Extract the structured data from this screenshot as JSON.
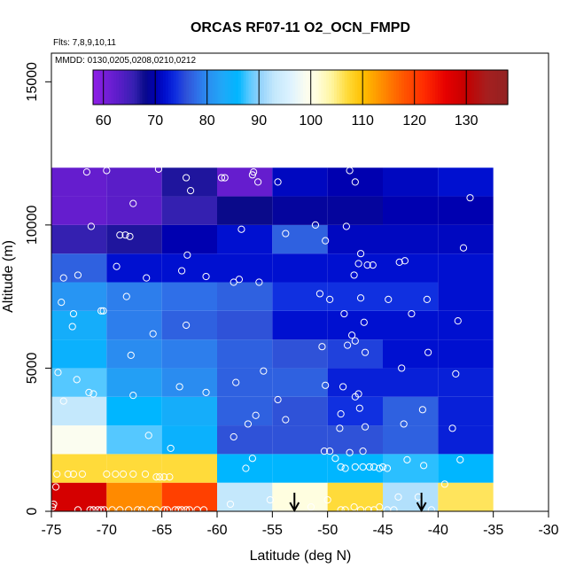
{
  "chart_data": {
    "type": "heatmap",
    "title": "ORCAS RF07-11 O2_OCN_FMPD",
    "subtitle_flights": "Flts: 7,8,9,10,11",
    "subtitle_dates": "MMDD: 0130,0205,0208,0210,0212",
    "xlabel": "Latitude (deg N)",
    "ylabel": "Altitude (m)",
    "xlim": [
      -75,
      -30
    ],
    "ylim": [
      0,
      16000
    ],
    "x_ticks": [
      -75,
      -70,
      -65,
      -60,
      -55,
      -50,
      -45,
      -40,
      -35,
      -30
    ],
    "x_tick_labels": [
      "-75",
      "-70",
      "-65",
      "-60",
      "-55",
      "-50",
      "-45",
      "-40",
      "-35",
      "-30"
    ],
    "y_ticks": [
      0,
      5000,
      10000,
      15000
    ],
    "y_tick_labels": [
      "0",
      "5000",
      "10000",
      "15000"
    ],
    "colorbar": {
      "range": [
        58,
        138
      ],
      "ticks": [
        60,
        70,
        80,
        90,
        100,
        110,
        120,
        130
      ],
      "tick_labels": [
        "60",
        "70",
        "80",
        "90",
        "100",
        "110",
        "120",
        "130"
      ]
    },
    "cell_size": {
      "dlat": 5,
      "dalt": 1000
    },
    "lat_starts": [
      -75,
      -70,
      -65,
      -60,
      -55,
      -50,
      -45,
      -40
    ],
    "alt_starts": [
      0,
      1000,
      2000,
      3000,
      4000,
      5000,
      6000,
      7000,
      8000,
      9000,
      10000,
      11000
    ],
    "cell_values": [
      [
        128,
        114,
        120,
        93,
        101,
        107,
        92,
        106
      ],
      [
        107,
        107,
        107,
        86,
        86,
        86,
        87,
        86
      ],
      [
        99,
        88,
        85,
        76,
        76,
        76,
        77,
        73
      ],
      [
        93,
        86,
        84,
        77,
        76,
        74,
        77,
        73
      ],
      [
        88,
        82,
        80,
        77,
        77,
        73,
        73,
        73
      ],
      [
        85,
        80,
        79,
        77,
        76,
        75,
        72,
        72
      ],
      [
        84,
        79,
        77,
        76,
        72,
        72,
        72,
        72
      ],
      [
        81,
        79,
        78,
        77,
        74,
        74,
        74,
        72
      ],
      [
        77,
        72,
        72,
        72,
        72,
        72,
        72,
        72
      ],
      [
        66,
        67,
        70,
        72,
        77,
        71,
        71,
        71
      ],
      [
        62,
        63,
        66,
        68,
        69,
        69,
        70,
        70
      ],
      [
        62,
        63,
        67,
        62,
        71,
        70,
        71,
        72
      ]
    ],
    "observation_points": [
      [
        -74.9,
        0.15
      ],
      [
        -74.8,
        0.25
      ],
      [
        -74.6,
        0.85
      ],
      [
        -74.5,
        1.3
      ],
      [
        -73.5,
        1.3
      ],
      [
        -73.0,
        1.3
      ],
      [
        -72.6,
        0.05
      ],
      [
        -72.2,
        1.3
      ],
      [
        -71.5,
        0.05
      ],
      [
        -71.2,
        0.05
      ],
      [
        -70.8,
        0.05
      ],
      [
        -70.5,
        0.05
      ],
      [
        -70.2,
        0.05
      ],
      [
        -70.0,
        1.3
      ],
      [
        -69.5,
        0.05
      ],
      [
        -69.2,
        1.3
      ],
      [
        -68.8,
        0.05
      ],
      [
        -68.5,
        1.3
      ],
      [
        -68.0,
        0.05
      ],
      [
        -67.6,
        1.3
      ],
      [
        -67.2,
        0.05
      ],
      [
        -66.8,
        0.05
      ],
      [
        -66.5,
        1.3
      ],
      [
        -66.0,
        0.05
      ],
      [
        -65.5,
        0.05
      ],
      [
        -64.8,
        0.05
      ],
      [
        -64.5,
        0.05
      ],
      [
        -63.8,
        0.05
      ],
      [
        -63.5,
        0.05
      ],
      [
        -63.2,
        0.05
      ],
      [
        -62.8,
        0.05
      ],
      [
        -62.5,
        0.05
      ],
      [
        -61.8,
        0.05
      ],
      [
        -61.2,
        0.05
      ],
      [
        -65.5,
        1.2
      ],
      [
        -65.2,
        1.2
      ],
      [
        -64.8,
        1.2
      ],
      [
        -64.3,
        1.2
      ],
      [
        -74.4,
        4.85
      ],
      [
        -73.9,
        3.85
      ],
      [
        -72.7,
        4.6
      ],
      [
        -71.6,
        4.15
      ],
      [
        -71.2,
        4.1
      ],
      [
        -67.6,
        4.05
      ],
      [
        -66.2,
        2.65
      ],
      [
        -64.2,
        2.2
      ],
      [
        -63.4,
        4.35
      ],
      [
        -61.0,
        4.15
      ],
      [
        -74.1,
        7.3
      ],
      [
        -73.0,
        6.9
      ],
      [
        -73.1,
        6.45
      ],
      [
        -70.5,
        7.0
      ],
      [
        -70.3,
        7.0
      ],
      [
        -68.2,
        7.5
      ],
      [
        -67.8,
        5.45
      ],
      [
        -65.8,
        6.2
      ],
      [
        -62.8,
        6.5
      ],
      [
        -61.0,
        8.2
      ],
      [
        -58.5,
        8.0
      ],
      [
        -58.0,
        8.1
      ],
      [
        -56.2,
        8.0
      ],
      [
        -73.9,
        8.15
      ],
      [
        -72.6,
        8.25
      ],
      [
        -69.1,
        8.55
      ],
      [
        -66.4,
        8.15
      ],
      [
        -63.2,
        8.4
      ],
      [
        -62.7,
        8.95
      ],
      [
        -57.8,
        9.85
      ],
      [
        -71.4,
        9.95
      ],
      [
        -68.8,
        9.65
      ],
      [
        -67.9,
        9.6
      ],
      [
        -68.3,
        9.65
      ],
      [
        -67.6,
        10.75
      ],
      [
        -62.4,
        11.2
      ],
      [
        -62.8,
        11.65
      ],
      [
        -59.6,
        11.65
      ],
      [
        -59.3,
        11.65
      ],
      [
        -56.8,
        11.75
      ],
      [
        -56.3,
        11.5
      ],
      [
        -56.7,
        11.85
      ],
      [
        -54.5,
        11.5
      ],
      [
        -48.0,
        11.9
      ],
      [
        -47.5,
        11.5
      ],
      [
        -71.8,
        11.85
      ],
      [
        -70.0,
        11.9
      ],
      [
        -65.3,
        11.95
      ],
      [
        -51.1,
        10.0
      ],
      [
        -48.3,
        9.95
      ],
      [
        -53.8,
        9.7
      ],
      [
        -50.2,
        9.45
      ],
      [
        -47.0,
        9.0
      ],
      [
        -47.2,
        8.65
      ],
      [
        -46.4,
        8.6
      ],
      [
        -45.9,
        8.6
      ],
      [
        -47.6,
        8.25
      ],
      [
        -43.5,
        8.7
      ],
      [
        -43.0,
        8.75
      ],
      [
        -37.7,
        9.2
      ],
      [
        -37.1,
        10.95
      ],
      [
        -50.7,
        7.6
      ],
      [
        -49.8,
        7.4
      ],
      [
        -47.0,
        7.45
      ],
      [
        -48.5,
        6.9
      ],
      [
        -44.5,
        7.4
      ],
      [
        -42.4,
        6.9
      ],
      [
        -41.0,
        7.4
      ],
      [
        -47.8,
        6.15
      ],
      [
        -47.5,
        5.95
      ],
      [
        -46.7,
        6.6
      ],
      [
        -50.5,
        5.75
      ],
      [
        -48.2,
        5.8
      ],
      [
        -46.6,
        5.55
      ],
      [
        -43.3,
        5.0
      ],
      [
        -40.9,
        5.55
      ],
      [
        -38.4,
        4.8
      ],
      [
        -38.2,
        6.65
      ],
      [
        -58.3,
        4.5
      ],
      [
        -55.8,
        4.9
      ],
      [
        -54.5,
        3.9
      ],
      [
        -53.8,
        3.2
      ],
      [
        -50.2,
        4.4
      ],
      [
        -48.6,
        4.35
      ],
      [
        -47.5,
        4.0
      ],
      [
        -47.2,
        4.1
      ],
      [
        -48.8,
        3.4
      ],
      [
        -47.1,
        3.6
      ],
      [
        -46.6,
        2.95
      ],
      [
        -48.9,
        2.9
      ],
      [
        -43.1,
        3.05
      ],
      [
        -41.4,
        3.55
      ],
      [
        -38.7,
        2.9
      ],
      [
        -57.2,
        3.05
      ],
      [
        -56.5,
        3.35
      ],
      [
        -58.5,
        2.6
      ],
      [
        -50.3,
        2.1
      ],
      [
        -49.8,
        2.1
      ],
      [
        -48.0,
        2.05
      ],
      [
        -46.8,
        2.1
      ],
      [
        -49.3,
        1.85
      ],
      [
        -48.8,
        1.55
      ],
      [
        -48.4,
        1.5
      ],
      [
        -47.5,
        1.55
      ],
      [
        -46.8,
        1.55
      ],
      [
        -46.2,
        1.55
      ],
      [
        -45.8,
        1.55
      ],
      [
        -45.3,
        1.5
      ],
      [
        -45.0,
        1.55
      ],
      [
        -44.6,
        1.5
      ],
      [
        -42.8,
        1.8
      ],
      [
        -41.3,
        1.6
      ],
      [
        -38.0,
        1.8
      ],
      [
        -57.4,
        1.5
      ],
      [
        -56.8,
        1.85
      ],
      [
        -39.4,
        0.95
      ],
      [
        -55.2,
        0.4
      ],
      [
        -51.5,
        0.15
      ],
      [
        -50.0,
        0.4
      ],
      [
        -48.8,
        0.05
      ],
      [
        -48.4,
        0.05
      ],
      [
        -47.6,
        0.15
      ],
      [
        -47.0,
        0.05
      ],
      [
        -46.3,
        0.05
      ],
      [
        -45.8,
        0.05
      ],
      [
        -45.3,
        0.15
      ],
      [
        -44.6,
        0.05
      ],
      [
        -44.0,
        0.05
      ],
      [
        -43.6,
        0.5
      ],
      [
        -41.8,
        0.5
      ],
      [
        -40.6,
        0.05
      ],
      [
        -58.8,
        0.25
      ]
    ],
    "arrows_latitude": [
      -53,
      -41.5
    ]
  }
}
